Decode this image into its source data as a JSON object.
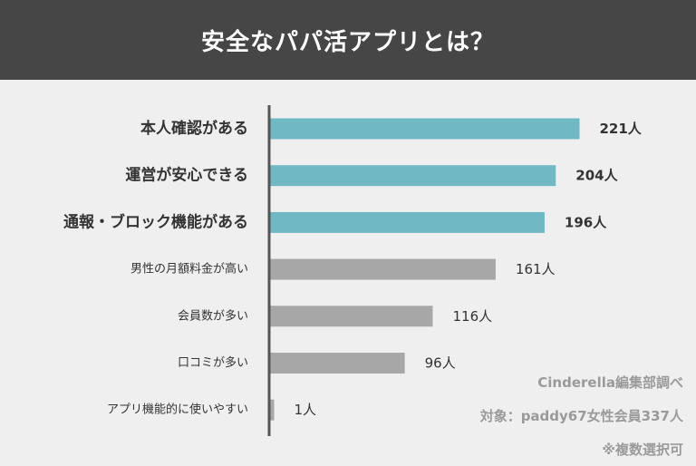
{
  "header": {
    "title": "安全なパパ活アプリとは？"
  },
  "notes": {
    "source": "Cinderella編集部調べ",
    "target": "対象：paddy67女性会員337人",
    "multi": "※複数選択可"
  },
  "colors": {
    "highlight": "#6fb8c4",
    "normal": "#a7a7a7",
    "axis": "#555555",
    "header_bg": "#464646"
  },
  "chart_data": {
    "type": "bar",
    "orientation": "horizontal",
    "categories": [
      "本人確認がある",
      "運営が安心できる",
      "通報・ブロック機能がある",
      "男性の月額料金が高い",
      "会員数が多い",
      "口コミが多い",
      "アプリ機能的に使いやすい"
    ],
    "values": [
      221,
      204,
      196,
      161,
      116,
      96,
      1
    ],
    "value_labels": [
      "221人",
      "204人",
      "196人",
      "161人",
      "116人",
      "96人",
      "1人"
    ],
    "highlighted": [
      true,
      true,
      true,
      false,
      false,
      false,
      false
    ],
    "xlim": [
      0,
      221
    ],
    "title": "",
    "xlabel": "",
    "ylabel": "",
    "grid": false,
    "legend": "none"
  }
}
